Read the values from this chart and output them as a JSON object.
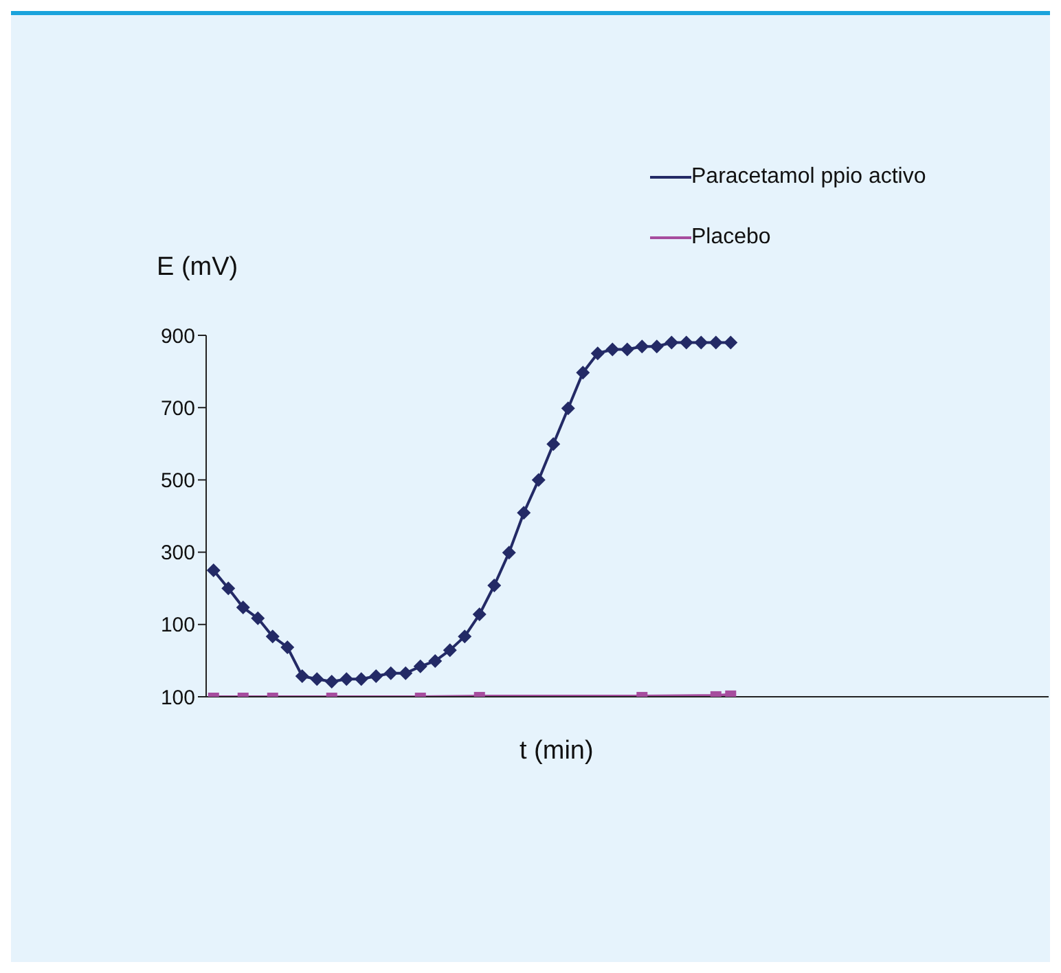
{
  "chart_data": {
    "type": "line",
    "xlabel": "t (min)",
    "ylabel": "E (mV)",
    "categories": [
      null,
      null,
      null,
      null,
      null,
      null,
      null,
      null,
      null,
      null,
      null,
      null,
      null,
      null,
      null,
      null,
      null,
      null,
      null,
      null,
      null,
      null,
      null,
      null,
      null,
      null,
      null,
      null,
      null,
      null,
      null,
      null,
      null,
      null,
      null,
      null
    ],
    "ylim": [
      -100,
      900
    ],
    "yticks": [
      {
        "value": -100,
        "label": "100"
      },
      {
        "value": 100,
        "label": "100"
      },
      {
        "value": 300,
        "label": "300"
      },
      {
        "value": 500,
        "label": "500"
      },
      {
        "value": 700,
        "label": "700"
      },
      {
        "value": 900,
        "label": "900"
      }
    ],
    "tick_labels": "y",
    "legend": "top right",
    "series": [
      {
        "name": "Paracetamol ppio activo",
        "color": "#232a66",
        "marker": "diamond",
        "values": [
          250,
          200,
          147,
          117,
          67,
          37,
          -43,
          -51,
          -58,
          -51,
          -51,
          -43,
          -35,
          -35,
          -16,
          -1,
          29,
          67,
          128,
          208,
          299,
          409,
          500,
          599,
          698,
          797,
          850,
          861,
          861,
          869,
          869,
          880,
          880,
          880,
          880,
          880
        ]
      },
      {
        "name": "Placebo",
        "color": "#a64d9e",
        "marker": "square",
        "values": [
          -100,
          null,
          -100,
          null,
          -100,
          null,
          null,
          null,
          -100,
          null,
          null,
          null,
          null,
          null,
          -100,
          null,
          null,
          null,
          -98,
          null,
          null,
          null,
          null,
          null,
          null,
          null,
          null,
          null,
          null,
          -98,
          null,
          null,
          null,
          null,
          -96,
          -94
        ]
      }
    ]
  }
}
